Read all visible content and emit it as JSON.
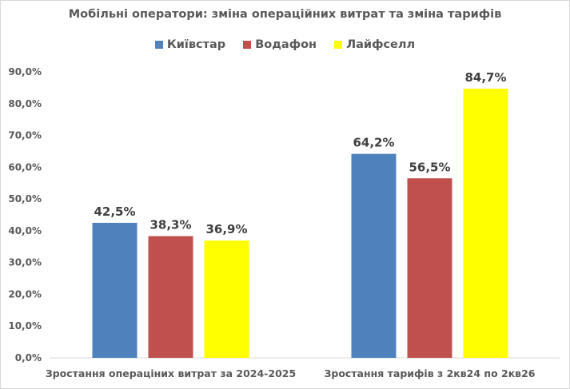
{
  "chart_data": {
    "type": "bar",
    "title": "Мобільні оператори: зміна операційних витрат та зміна тарифів",
    "categories": [
      "Зростання операціних витрат за 2024-2025",
      "Зростання тарифів з 2кв24 по 2кв26"
    ],
    "series": [
      {
        "name": "Київстар",
        "color": "#4f81bd",
        "values": [
          42.5,
          64.2
        ],
        "labels": [
          "42,5%",
          "64,2%"
        ]
      },
      {
        "name": "Водафон",
        "color": "#c0504d",
        "values": [
          38.3,
          56.5
        ],
        "labels": [
          "38,3%",
          "56,5%"
        ]
      },
      {
        "name": "Лайфселл",
        "color": "#ffff00",
        "values": [
          36.9,
          84.7
        ],
        "labels": [
          "36,9%",
          "84,7%"
        ]
      }
    ],
    "yticks": [
      "0,0%",
      "10,0%",
      "20,0%",
      "30,0%",
      "40,0%",
      "50,0%",
      "60,0%",
      "70,0%",
      "80,0%",
      "90,0%"
    ],
    "ylim": [
      0,
      90
    ],
    "grid": false,
    "legend": "top"
  }
}
